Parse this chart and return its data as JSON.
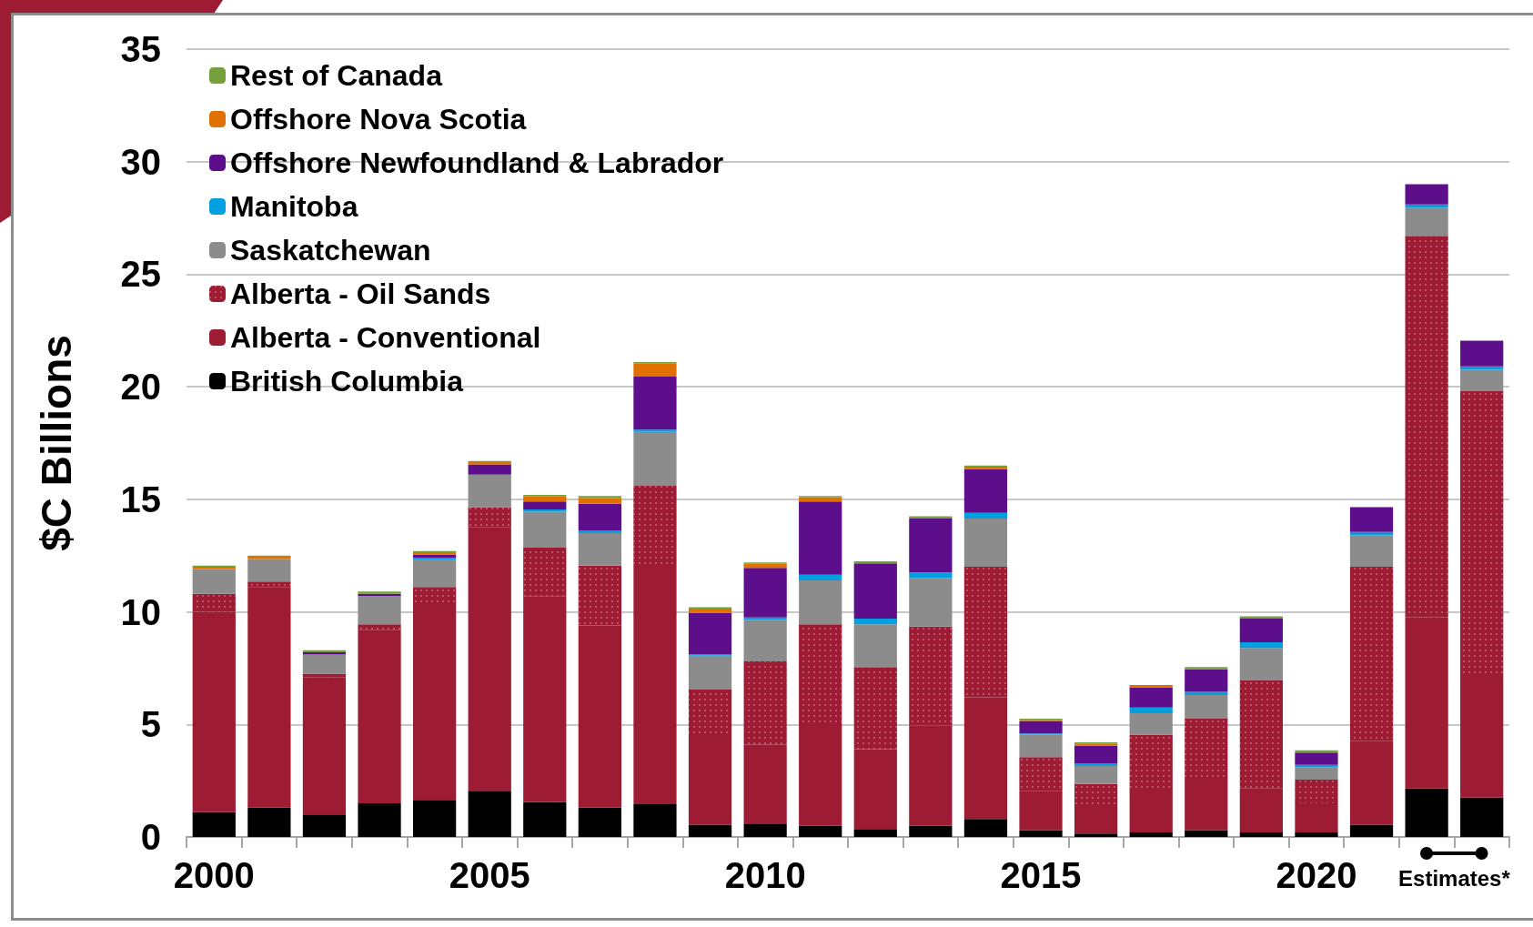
{
  "chart_data": {
    "type": "bar",
    "stacked": true,
    "ylabel": "$C Billions",
    "categories": [
      "2000",
      null,
      null,
      null,
      null,
      "2005",
      null,
      null,
      null,
      null,
      "2010",
      null,
      null,
      null,
      null,
      "2015",
      null,
      null,
      null,
      null,
      "2020",
      null,
      null,
      null
    ],
    "series": [
      {
        "name": "British Columbia",
        "color": "#000000",
        "values": [
          1.1,
          1.3,
          1.0,
          1.5,
          1.65,
          2.05,
          1.55,
          1.3,
          1.45,
          0.55,
          0.6,
          0.5,
          0.35,
          0.5,
          0.8,
          0.3,
          0.15,
          0.2,
          0.3,
          0.2,
          0.2,
          0.55,
          2.15,
          1.75
        ]
      },
      {
        "name": "Alberta - Conventional",
        "color": "#9e1b34",
        "values": [
          8.9,
          9.8,
          6.1,
          7.7,
          8.7,
          11.7,
          9.15,
          8.1,
          10.55,
          3.9,
          3.5,
          4.55,
          3.55,
          4.45,
          5.4,
          1.75,
          1.3,
          1.9,
          2.25,
          1.95,
          1.3,
          3.7,
          7.6,
          5.4
        ]
      },
      {
        "name": "Alberta - Oil Sands",
        "color": "#9e1b34",
        "values": [
          0.8,
          0.25,
          0.15,
          0.25,
          0.75,
          0.9,
          2.15,
          2.65,
          3.6,
          2.1,
          3.7,
          4.4,
          3.65,
          4.4,
          5.8,
          1.5,
          0.9,
          2.45,
          2.7,
          4.8,
          1.05,
          7.75,
          16.95,
          12.65
        ]
      },
      {
        "name": "Saskatchewan",
        "color": "#8c8c8c",
        "values": [
          1.1,
          1.0,
          0.85,
          1.25,
          1.2,
          1.45,
          1.6,
          1.45,
          2.4,
          1.5,
          1.85,
          1.95,
          1.9,
          2.15,
          2.15,
          1.0,
          0.8,
          0.95,
          1.05,
          1.45,
          0.55,
          1.4,
          1.25,
          0.95
        ]
      },
      {
        "name": "Manitoba",
        "color": "#00a0e0",
        "values": [
          0,
          0,
          0,
          0,
          0.1,
          0,
          0.1,
          0.1,
          0.1,
          0.05,
          0.1,
          0.25,
          0.25,
          0.25,
          0.25,
          0.05,
          0.1,
          0.25,
          0.15,
          0.25,
          0.1,
          0.15,
          0.15,
          0.15
        ]
      },
      {
        "name": "Offshore Newfoundland & Labrador",
        "color": "#5c0e8b",
        "values": [
          0,
          0,
          0.1,
          0.1,
          0.15,
          0.45,
          0.35,
          1.2,
          2.35,
          1.85,
          2.2,
          3.25,
          2.45,
          2.4,
          1.95,
          0.55,
          0.8,
          0.9,
          1.0,
          1.05,
          0.55,
          1.1,
          0.9,
          1.15
        ]
      },
      {
        "name": "Offshore Nova Scotia",
        "color": "#e07000",
        "values": [
          0.1,
          0.1,
          0,
          0,
          0.1,
          0.1,
          0.25,
          0.25,
          0.6,
          0.15,
          0.2,
          0.2,
          0,
          0,
          0.1,
          0.05,
          0.1,
          0.1,
          0,
          0,
          0,
          0,
          0,
          0
        ]
      },
      {
        "name": "Rest of Canada",
        "color": "#76a03c",
        "values": [
          0.05,
          0.05,
          0.1,
          0.1,
          0.05,
          0.05,
          0.05,
          0.1,
          0.05,
          0.1,
          0.05,
          0.05,
          0.1,
          0.1,
          0.05,
          0.05,
          0.05,
          0,
          0.1,
          0.1,
          0.1,
          0,
          0,
          0
        ]
      }
    ],
    "ylim": [
      0,
      35
    ],
    "yticks": [
      0,
      5,
      10,
      15,
      20,
      25,
      30,
      35
    ],
    "grid": "y",
    "legend": "top left",
    "annotations": [
      "Estimates*"
    ]
  }
}
